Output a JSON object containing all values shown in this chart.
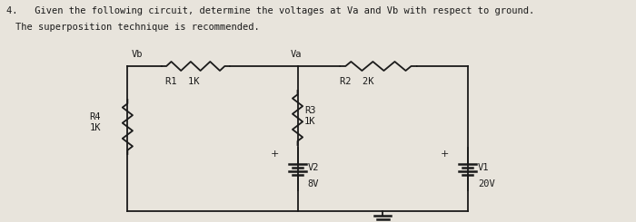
{
  "title_line1": "4.   Given the following circuit, determine the voltages at Va and Vb with respect to ground.",
  "title_line2": "The superposition technique is recommended.",
  "background_color": "#e8e4dc",
  "text_color": "#1a1a1a",
  "circuit": {
    "Vb_label": "Vb",
    "Va_label": "Va",
    "R1_label": "R1  1K",
    "R2_label": "R2  2K",
    "R3_label": "R3\n1K",
    "R4_label": "R4\n1K",
    "V1_label": "V1",
    "V2_label": "V2",
    "V1_value": "20V",
    "V2_value": "8V",
    "plus_label": "+"
  }
}
